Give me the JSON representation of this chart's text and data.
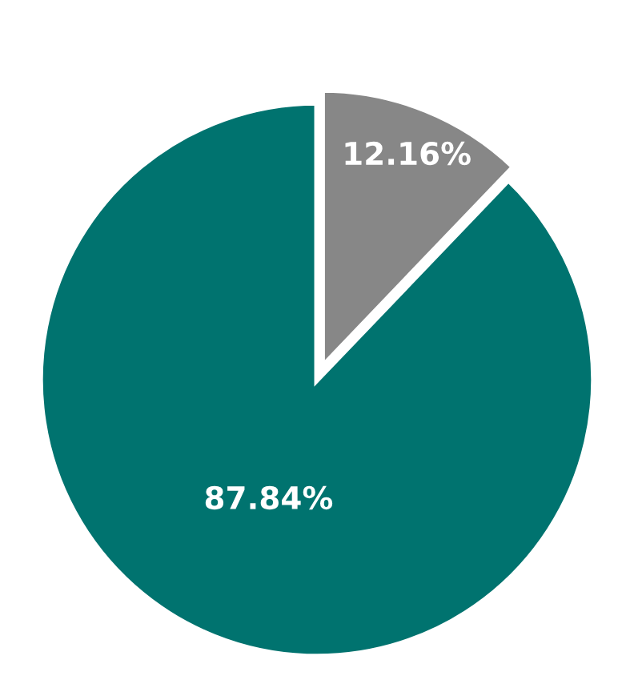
{
  "chart_data": {
    "type": "pie",
    "categories": [
      null,
      null
    ],
    "values": [
      12.16,
      87.84
    ],
    "colors": [
      "#878787",
      "#00736f"
    ],
    "value_labels": [
      "12.16%",
      "87.84%"
    ]
  }
}
